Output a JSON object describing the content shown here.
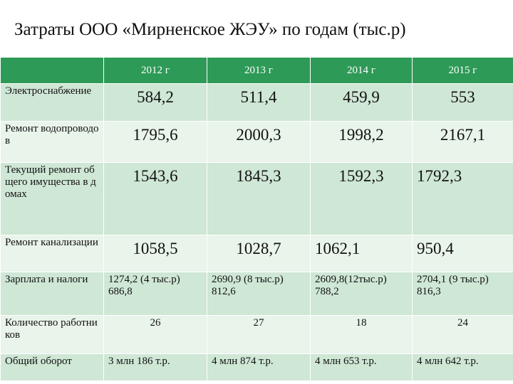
{
  "title": "Затраты ООО «Мирненское ЖЭУ» по годам (тыс.р)",
  "table": {
    "header": [
      "2012 г",
      "2013 г",
      "2014 г",
      "2015 г"
    ],
    "rows": [
      [
        "Электроснабжение",
        "584,2",
        "511,4",
        "459,9",
        "553"
      ],
      [
        "Ремонт водопроводов",
        "1795,6",
        "2000,3",
        "1998,2",
        "2167,1"
      ],
      [
        "Текущий ремонт общего имущества в домах",
        "1543,6",
        "1845,3",
        "1592,3",
        "1792,3"
      ],
      [
        "Ремонт канализации",
        "1058,5",
        "1028,7",
        "1062,1",
        "950,4"
      ],
      [
        "Зарплата и налоги",
        "1274,2 (4 тыс.р)\n686,8",
        "2690,9 (8 тыс.р)\n812,6",
        "2609,8(12тыс.р)\n788,2",
        "2704,1 (9 тыс.р)\n816,3"
      ],
      [
        "Количество работников",
        "26",
        "27",
        "18",
        "24"
      ],
      [
        "Общий оборот",
        "3 млн 186 т.р.",
        "4 млн 874 т.р.",
        "4 млн 653 т.р.",
        "4 млн 642 т.р."
      ]
    ]
  }
}
